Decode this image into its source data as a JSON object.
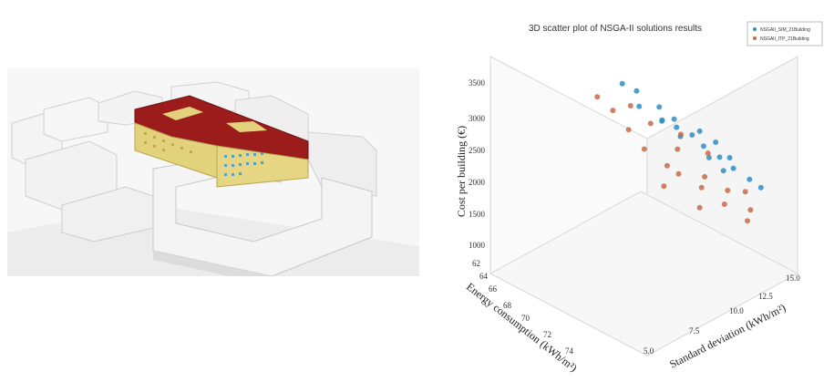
{
  "render_image": {
    "colors": {
      "roof": "#9c1b1b",
      "facade": "#e3d27c",
      "panel": "#3c8fc2",
      "building": "#f2f2f2",
      "shadow": "#cfcfcf"
    }
  },
  "chart_data": {
    "type": "scatter",
    "title": "3D scatter plot of NSGA-II solutions results",
    "xlabel": "Standard deviation (kWh/m²)",
    "ylabel": "Energy consumption (kWh/m²)",
    "zlabel": "Cost per building (€)",
    "x_ticks": [
      "5.0",
      "7.5",
      "10.0",
      "12.5",
      "15.0"
    ],
    "y_ticks": [
      "62",
      "64",
      "66",
      "68",
      "70",
      "72",
      "74"
    ],
    "z_ticks": [
      "1000",
      "1500",
      "2000",
      "2500",
      "3000",
      "3500"
    ],
    "xlim": [
      5.0,
      15.0
    ],
    "ylim": [
      62,
      74
    ],
    "zlim": [
      1000,
      3500
    ],
    "legend_placement": "top-right",
    "series": [
      {
        "name": "NSGAII_SIM_21Building",
        "color": "#2e8fc4",
        "points": [
          {
            "x": 10.5,
            "y": 69.0,
            "z": 2600
          },
          {
            "x": 11.0,
            "y": 70.0,
            "z": 2500
          },
          {
            "x": 9.8,
            "y": 68.5,
            "z": 2750
          },
          {
            "x": 11.5,
            "y": 70.5,
            "z": 2300
          },
          {
            "x": 12.2,
            "y": 71.2,
            "z": 2100
          },
          {
            "x": 8.8,
            "y": 67.5,
            "z": 3000
          },
          {
            "x": 10.0,
            "y": 67.8,
            "z": 2900
          },
          {
            "x": 12.8,
            "y": 71.8,
            "z": 1900
          },
          {
            "x": 13.5,
            "y": 72.5,
            "z": 1700
          },
          {
            "x": 9.2,
            "y": 66.5,
            "z": 3150
          },
          {
            "x": 11.8,
            "y": 69.5,
            "z": 2450
          },
          {
            "x": 10.8,
            "y": 68.2,
            "z": 2650
          },
          {
            "x": 12.5,
            "y": 70.2,
            "z": 2250
          },
          {
            "x": 13.0,
            "y": 71.0,
            "z": 2000
          },
          {
            "x": 8.5,
            "y": 66.0,
            "z": 3300
          },
          {
            "x": 14.0,
            "y": 73.0,
            "z": 1550
          },
          {
            "x": 11.3,
            "y": 71.5,
            "z": 2200
          },
          {
            "x": 10.2,
            "y": 70.0,
            "z": 2550
          },
          {
            "x": 9.5,
            "y": 69.0,
            "z": 2800
          },
          {
            "x": 12.0,
            "y": 72.0,
            "z": 1950
          }
        ]
      },
      {
        "name": "NSGAII_ITP_21Building",
        "color": "#c96a48",
        "points": [
          {
            "x": 9.0,
            "y": 70.5,
            "z": 2200
          },
          {
            "x": 8.0,
            "y": 69.5,
            "z": 2500
          },
          {
            "x": 10.5,
            "y": 72.0,
            "z": 1800
          },
          {
            "x": 7.5,
            "y": 68.5,
            "z": 2800
          },
          {
            "x": 11.5,
            "y": 73.0,
            "z": 1500
          },
          {
            "x": 9.5,
            "y": 71.0,
            "z": 2050
          },
          {
            "x": 8.5,
            "y": 67.0,
            "z": 3000
          },
          {
            "x": 12.0,
            "y": 72.5,
            "z": 1650
          },
          {
            "x": 10.0,
            "y": 70.0,
            "z": 2350
          },
          {
            "x": 13.0,
            "y": 73.5,
            "z": 1300
          },
          {
            "x": 7.0,
            "y": 67.5,
            "z": 3100
          },
          {
            "x": 11.0,
            "y": 71.5,
            "z": 1900
          },
          {
            "x": 9.8,
            "y": 73.0,
            "z": 1600
          },
          {
            "x": 8.2,
            "y": 71.5,
            "z": 2000
          },
          {
            "x": 12.5,
            "y": 74.0,
            "z": 1200
          },
          {
            "x": 10.8,
            "y": 69.0,
            "z": 2450
          },
          {
            "x": 6.5,
            "y": 66.5,
            "z": 3300
          },
          {
            "x": 11.8,
            "y": 70.5,
            "z": 2150
          },
          {
            "x": 9.3,
            "y": 68.0,
            "z": 2700
          },
          {
            "x": 13.5,
            "y": 72.0,
            "z": 1450
          }
        ]
      }
    ]
  }
}
